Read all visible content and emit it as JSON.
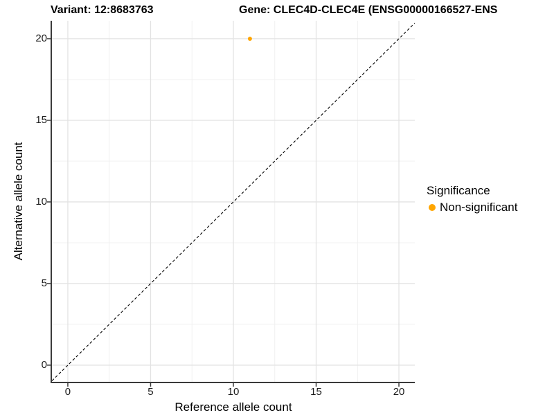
{
  "header": {
    "variant_title": "Variant: 12:8683763",
    "gene_title": "Gene: CLEC4D-CLEC4E (ENSG00000166527-ENS"
  },
  "legend": {
    "title": "Significance",
    "items": [
      {
        "label": "Non-significant",
        "color": "#FFA500"
      }
    ]
  },
  "colors": {
    "accent_orange": "#FFA500",
    "grid_major": "#e3e3e3",
    "grid_minor": "#f0f0f0",
    "axis_line": "#3a3a3a",
    "identity_line": "#000000"
  },
  "chart_data": {
    "type": "scatter",
    "title": "Variant: 12:8683763 — Gene: CLEC4D-CLEC4E (ENSG00000166527-ENS",
    "xlabel": "Reference allele count",
    "ylabel": "Alternative allele count",
    "xlim": [
      -0.96,
      20.96
    ],
    "ylim": [
      -1.02,
      21.1
    ],
    "x_ticks": [
      0,
      5,
      10,
      15,
      20
    ],
    "y_ticks": [
      0,
      5,
      10,
      15,
      20
    ],
    "x_minor_ticks": [
      2.5,
      7.5,
      12.5,
      17.5
    ],
    "y_minor_ticks": [
      2.5,
      7.5,
      12.5,
      17.5
    ],
    "grid": true,
    "legend_position": "right",
    "series": [
      {
        "name": "Non-significant",
        "color": "#FFA500",
        "points": [
          {
            "x": 11,
            "y": 20
          }
        ]
      }
    ],
    "identity_line": {
      "style": "dashed",
      "color": "#000000",
      "note": "y = x reference diagonal"
    }
  }
}
